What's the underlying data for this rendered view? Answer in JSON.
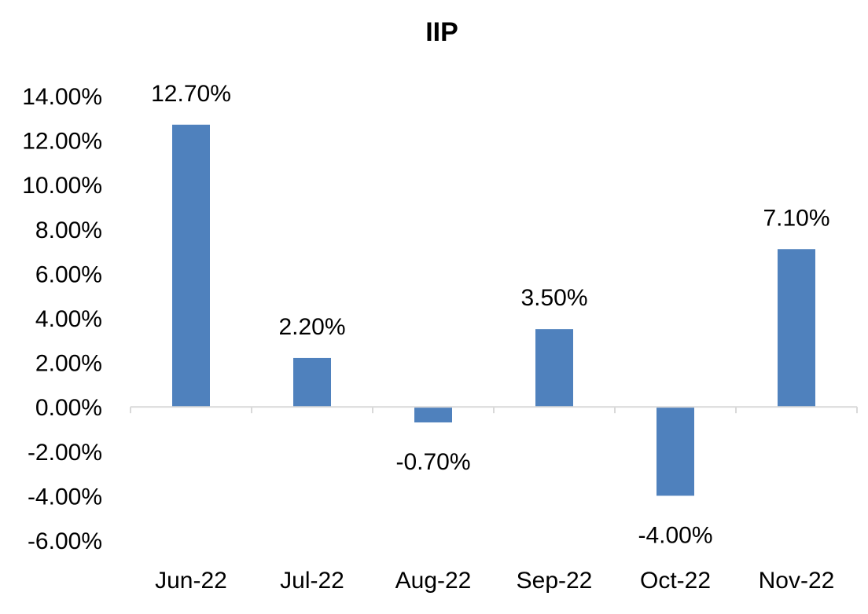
{
  "chart_data": {
    "type": "bar",
    "title": "IIP",
    "xlabel": "",
    "ylabel": "",
    "categories": [
      "Jun-22",
      "Jul-22",
      "Aug-22",
      "Sep-22",
      "Oct-22",
      "Nov-22"
    ],
    "values": [
      12.7,
      2.2,
      -0.7,
      3.5,
      -4.0,
      7.1
    ],
    "data_labels": [
      "12.70%",
      "2.20%",
      "-0.70%",
      "3.50%",
      "-4.00%",
      "7.10%"
    ],
    "ylim": [
      -6,
      14
    ],
    "y_ticks": [
      14,
      12,
      10,
      8,
      6,
      4,
      2,
      0,
      -2,
      -4,
      -6
    ],
    "y_tick_labels": [
      "14.00%",
      "12.00%",
      "10.00%",
      "8.00%",
      "6.00%",
      "4.00%",
      "2.00%",
      "0.00%",
      "-2.00%",
      "-4.00%",
      "-6.00%"
    ],
    "grid": false,
    "legend": "none",
    "bar_color": "#4F81BD",
    "axis_color": "#D9D9D9"
  }
}
